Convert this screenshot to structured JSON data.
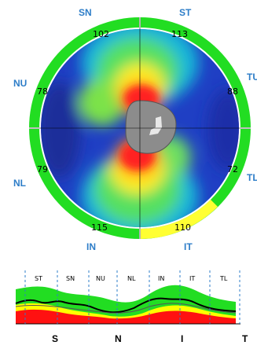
{
  "map": {
    "sectors": {
      "SN": {
        "label": "SN",
        "value": "102"
      },
      "ST": {
        "label": "ST",
        "value": "113"
      },
      "NU": {
        "label": "NU",
        "value": "78"
      },
      "TU": {
        "label": "TU",
        "value": "88"
      },
      "NL": {
        "label": "NL",
        "value": "79"
      },
      "TL": {
        "label": "TL",
        "value": "72"
      },
      "IN": {
        "label": "IN",
        "value": "115"
      },
      "IT": {
        "label": "IT",
        "value": "110"
      }
    },
    "colors": {
      "normal": "#22dd22",
      "borderline": "#ffff33",
      "ring_outline": "#ffffff"
    }
  },
  "profile": {
    "segments": [
      "ST",
      "SN",
      "NU",
      "NL",
      "IN",
      "IT",
      "TL"
    ],
    "axis": [
      "S",
      "N",
      "I",
      "T"
    ],
    "colors": {
      "green": "#22dd22",
      "yellow": "#ffff00",
      "red": "#ff1111",
      "line": "#000000"
    }
  }
}
